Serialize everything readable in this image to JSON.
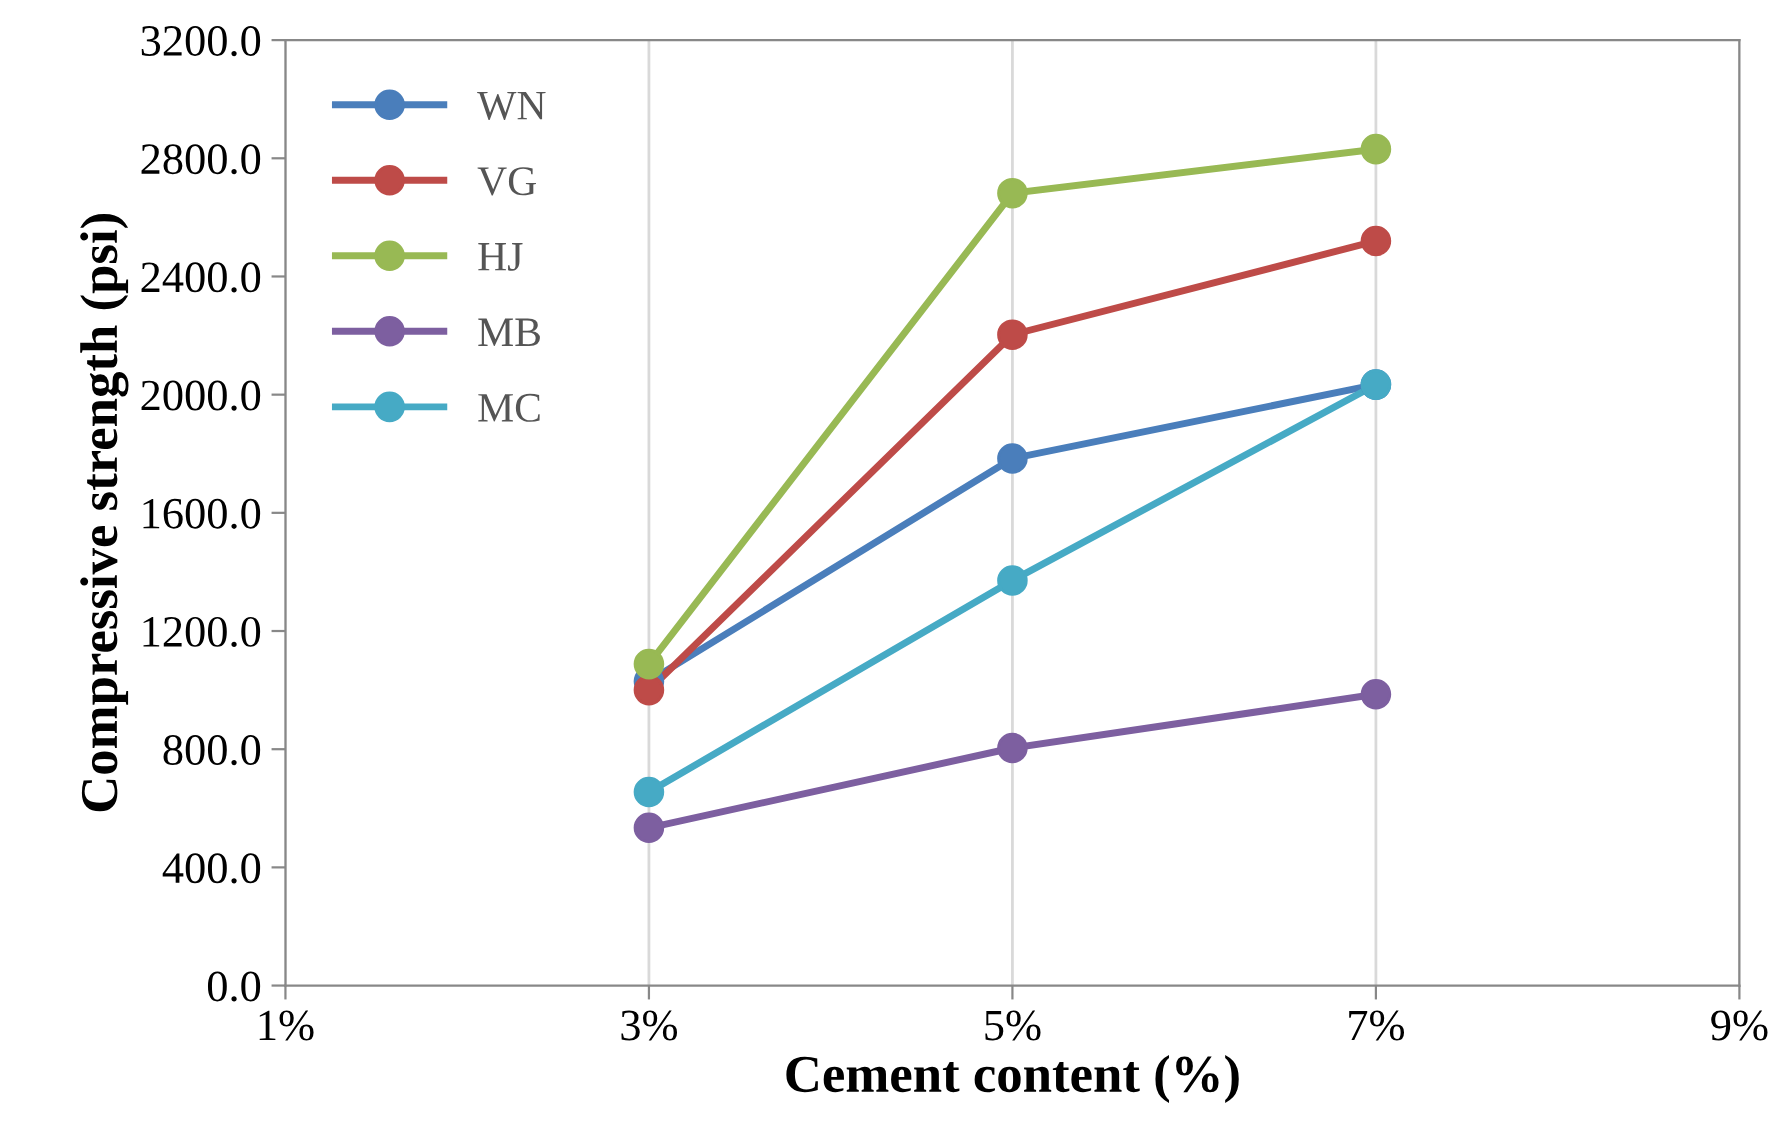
{
  "chart_data": {
    "type": "line",
    "xlabel": "Cement content (%)",
    "ylabel": "Compressive strength (psi)",
    "x": [
      3,
      5,
      7
    ],
    "series": [
      {
        "name": "WN",
        "color": "#4a7ebb",
        "values": [
          1030,
          1784,
          2034
        ]
      },
      {
        "name": "VG",
        "color": "#be4b48",
        "values": [
          1000,
          2203,
          2520
        ]
      },
      {
        "name": "HJ",
        "color": "#98b954",
        "values": [
          1088,
          2682,
          2831
        ]
      },
      {
        "name": "MB",
        "color": "#7d5fa0",
        "values": [
          534,
          804,
          986
        ]
      },
      {
        "name": "MC",
        "color": "#46aac5",
        "values": [
          655,
          1371,
          2034
        ]
      }
    ],
    "xlim": [
      1,
      9
    ],
    "xticks": [
      {
        "value": 1,
        "label": "1%"
      },
      {
        "value": 3,
        "label": "3%"
      },
      {
        "value": 5,
        "label": "5%"
      },
      {
        "value": 7,
        "label": "7%"
      },
      {
        "value": 9,
        "label": "9%"
      }
    ],
    "ylim": [
      0,
      3200
    ],
    "yticks": [
      {
        "value": 0,
        "label": "0.0"
      },
      {
        "value": 400,
        "label": "400.0"
      },
      {
        "value": 800,
        "label": "800.0"
      },
      {
        "value": 1200,
        "label": "1200.0"
      },
      {
        "value": 1600,
        "label": "1600.0"
      },
      {
        "value": 2000,
        "label": "2000.0"
      },
      {
        "value": 2400,
        "label": "2400.0"
      },
      {
        "value": 2800,
        "label": "2800.0"
      },
      {
        "value": 3200,
        "label": "3200.0"
      }
    ],
    "grid": "x",
    "legend": "top left",
    "marker": "circle",
    "line_style": "solid"
  }
}
